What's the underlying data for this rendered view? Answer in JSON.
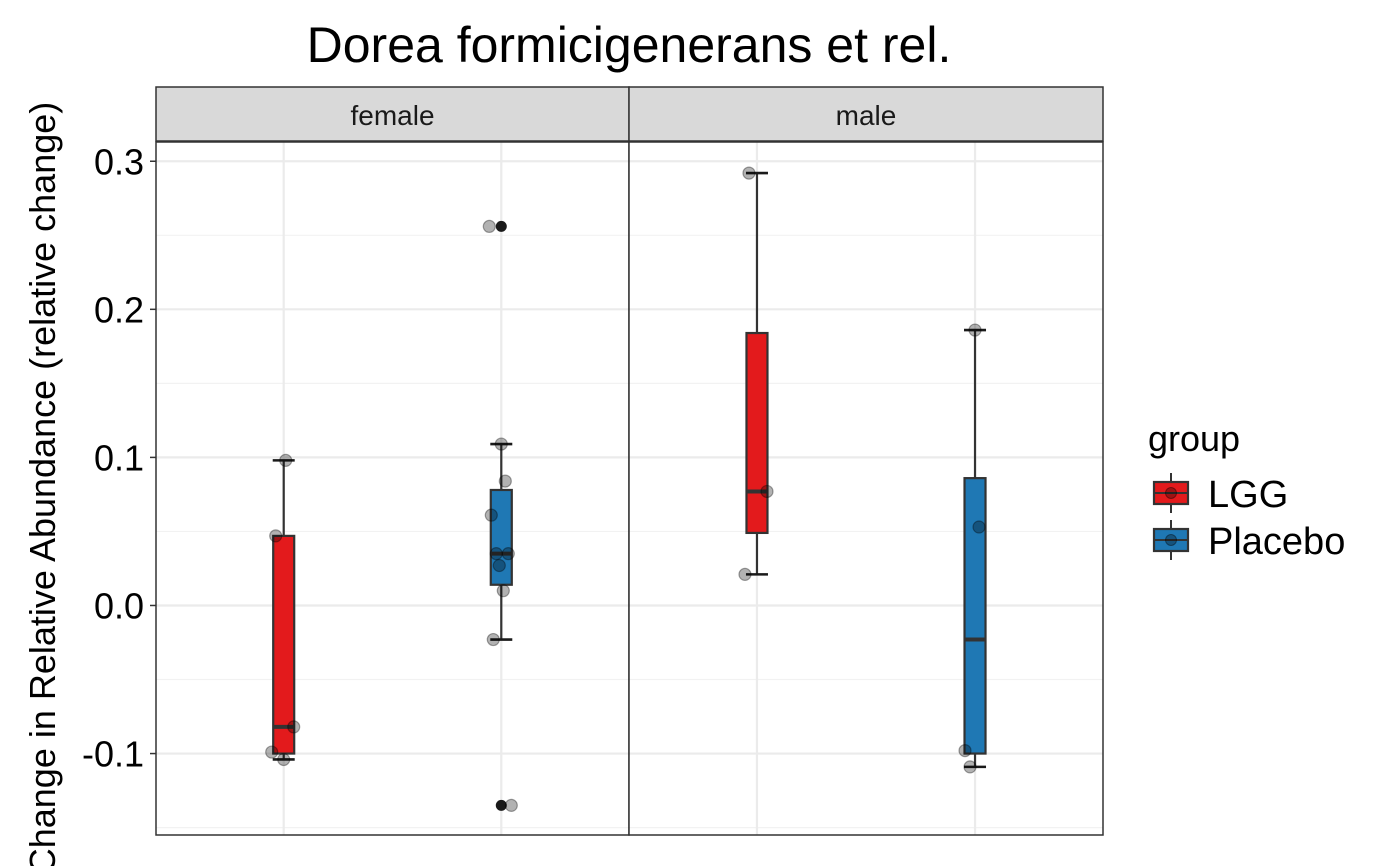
{
  "chart_data": {
    "type": "box",
    "title": "Dorea formicigenerans et rel.",
    "ylabel": "Change in Relative Abundance (relative change)",
    "xlabel": "",
    "ylim": [
      -0.155,
      0.313
    ],
    "yticks": [
      -0.1,
      0.0,
      0.1,
      0.2,
      0.3
    ],
    "ytick_labels": [
      "-0.1",
      "0.0",
      "0.1",
      "0.2",
      "0.3"
    ],
    "grid": true,
    "facets": [
      "female",
      "male"
    ],
    "legend": {
      "title": "group",
      "position": "right",
      "items": [
        {
          "label": "LGG",
          "color": "#e31a1c"
        },
        {
          "label": "Placebo",
          "color": "#1f78b4"
        }
      ]
    },
    "boxes": [
      {
        "facet": "female",
        "group": "LGG",
        "whisker_low": -0.104,
        "q1": -0.1,
        "median": -0.082,
        "q3": 0.047,
        "whisker_high": 0.098,
        "outliers": []
      },
      {
        "facet": "female",
        "group": "Placebo",
        "whisker_low": -0.023,
        "q1": 0.014,
        "median": 0.035,
        "q3": 0.078,
        "whisker_high": 0.109,
        "outliers": [
          0.256,
          -0.135
        ]
      },
      {
        "facet": "male",
        "group": "LGG",
        "whisker_low": 0.021,
        "q1": 0.049,
        "median": 0.077,
        "q3": 0.184,
        "whisker_high": 0.292,
        "outliers": []
      },
      {
        "facet": "male",
        "group": "Placebo",
        "whisker_low": -0.109,
        "q1": -0.1,
        "median": -0.023,
        "q3": 0.086,
        "whisker_high": 0.186,
        "outliers": []
      }
    ],
    "points": [
      {
        "facet": "female",
        "group": "LGG",
        "values": [
          0.098,
          0.047,
          -0.082,
          -0.099,
          -0.104
        ]
      },
      {
        "facet": "female",
        "group": "Placebo",
        "values": [
          0.256,
          0.109,
          0.084,
          0.061,
          0.035,
          0.035,
          0.027,
          0.01,
          -0.023,
          -0.135
        ]
      },
      {
        "facet": "male",
        "group": "LGG",
        "values": [
          0.292,
          0.077,
          0.021
        ]
      },
      {
        "facet": "male",
        "group": "Placebo",
        "values": [
          0.186,
          0.053,
          -0.098,
          -0.109
        ]
      }
    ]
  }
}
